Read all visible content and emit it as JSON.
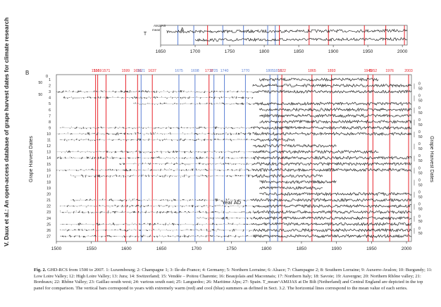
{
  "side_title": "V. Daux et al.: An open-access database of grape harvest dates for climate research",
  "caption": {
    "label": "Fig. 2.",
    "text": "GHD-RCS from 1500 to 2007. 1: Luxembourg; 2: Champagne 1; 3: Ile-de-France; 4: Germany; 5: Northern Lorraine; 6: Alsace; 7: Champagne 2; 8: Southern Lorraine; 9: Auxerre-Avalon; 10: Burgundy; 11: Low Loire Valley; 12: High Loire Valley; 13: Jura; 14: Switzerland; 15: Vendée – Poitou Charente; 16: Beaujolais and Maconnais; 17: Northern Italy; 18: Savoie; 19: Auvergne; 20: Northern Rhône valley; 21: Bordeaux; 22: Rhône Valley; 23: Gaillac-south west; 24: various south east; 25: Languedoc; 26: Maritime Alps; 27: Spain. T_mean^AMJJAS at De Bilt (Netherland) and Central England are depicted in the top panel for comparison. The vertical bars correspond to years with extremely warm (red) and cool (blue) summers as defined in Sect. 3.2. The horizontal lines correspond to the mean value of each series."
  },
  "colors": {
    "warm": "#e8242b",
    "cool": "#5b7fd4",
    "series": "#111111",
    "frame": "#333333"
  },
  "chart_data": [
    {
      "type": "line",
      "panel": "A",
      "ylabel": "T mean AMJJAS",
      "xlim": [
        1650,
        2007
      ],
      "x_ticks": [
        1650,
        1700,
        1750,
        1800,
        1850,
        1900,
        1950,
        2000
      ],
      "warm_years": [
        1718,
        1822,
        1865,
        1893,
        1945,
        1976,
        2003
      ],
      "cool_years": [
        1675,
        1698,
        1740,
        1770,
        1805,
        1816
      ]
    },
    {
      "type": "line",
      "panel": "B",
      "title": "Grape Harvest Dates",
      "xlabel": "Year AD",
      "ylabel_left": "Grape Harvest Dates",
      "ylabel_right": "Grape Harvest Dates",
      "xlim": [
        1500,
        2007
      ],
      "x_ticks": [
        1500,
        1550,
        1600,
        1650,
        1700,
        1750,
        1800,
        1850,
        1900,
        1950,
        2000
      ],
      "y_ticks_per_series": [
        0,
        50
      ],
      "series_count": 27,
      "warm_years": [
        1556,
        1559,
        1571,
        1599,
        1616,
        1637,
        1718,
        1822,
        1865,
        1893,
        1945,
        1952,
        1976,
        2003
      ],
      "cool_years": [
        1621,
        1675,
        1698,
        1725,
        1740,
        1770,
        1805,
        1816
      ],
      "extreme_labels": [
        {
          "year": 1556,
          "text": "1556"
        },
        {
          "year": 1559,
          "text": "1559"
        },
        {
          "year": 1571,
          "text": "1571"
        },
        {
          "year": 1599,
          "text": "1599"
        },
        {
          "year": 1616,
          "text": "1616"
        },
        {
          "year": 1621,
          "text": "1621"
        },
        {
          "year": 1637,
          "text": "1637"
        },
        {
          "year": 1675,
          "text": "1675"
        },
        {
          "year": 1698,
          "text": "1698"
        },
        {
          "year": 1718,
          "text": "1718"
        },
        {
          "year": 1725,
          "text": "1725"
        },
        {
          "year": 1740,
          "text": "1740"
        },
        {
          "year": 1770,
          "text": "1770"
        },
        {
          "year": 1805,
          "text": "1805"
        },
        {
          "year": 1816,
          "text": "1816"
        },
        {
          "year": 1822,
          "text": "1822"
        },
        {
          "year": 1865,
          "text": "1865"
        },
        {
          "year": 1893,
          "text": "1893"
        },
        {
          "year": 1945,
          "text": "1945"
        },
        {
          "year": 1952,
          "text": "1952"
        },
        {
          "year": 1976,
          "text": "1976"
        },
        {
          "year": 2003,
          "text": "2003"
        }
      ],
      "series_spans": [
        {
          "id": "1",
          "start": 1790,
          "end": 1960
        },
        {
          "id": "2",
          "start": 1780,
          "end": 2007
        },
        {
          "id": "3",
          "start": 1500,
          "end": 2007
        },
        {
          "id": "4",
          "start": 1510,
          "end": 1780
        },
        {
          "id": "5",
          "start": 1610,
          "end": 2007
        },
        {
          "id": "6",
          "start": 1790,
          "end": 2007
        },
        {
          "id": "7",
          "start": 1790,
          "end": 2007
        },
        {
          "id": "8",
          "start": 1790,
          "end": 2007
        },
        {
          "id": "9",
          "start": 1505,
          "end": 2007
        },
        {
          "id": "10",
          "start": 1500,
          "end": 2007
        },
        {
          "id": "11",
          "start": 1505,
          "end": 1840
        },
        {
          "id": "12",
          "start": 1780,
          "end": 1900
        },
        {
          "id": "13",
          "start": 1500,
          "end": 1960
        },
        {
          "id": "14",
          "start": 1500,
          "end": 2007
        },
        {
          "id": "15",
          "start": 1590,
          "end": 2007
        },
        {
          "id": "16",
          "start": 1500,
          "end": 2007
        },
        {
          "id": "17",
          "start": 1520,
          "end": 1880
        },
        {
          "id": "18",
          "start": 1790,
          "end": 1900
        },
        {
          "id": "19",
          "start": 1790,
          "end": 1880
        },
        {
          "id": "20",
          "start": 1790,
          "end": 2007
        },
        {
          "id": "21",
          "start": 1520,
          "end": 2007
        },
        {
          "id": "22",
          "start": 1505,
          "end": 2007
        },
        {
          "id": "23",
          "start": 1505,
          "end": 2007
        },
        {
          "id": "24",
          "start": 1700,
          "end": 2007
        },
        {
          "id": "25",
          "start": 1505,
          "end": 2007
        },
        {
          "id": "26",
          "start": 1505,
          "end": 2007
        },
        {
          "id": "27",
          "start": 1505,
          "end": 2007
        }
      ]
    }
  ]
}
